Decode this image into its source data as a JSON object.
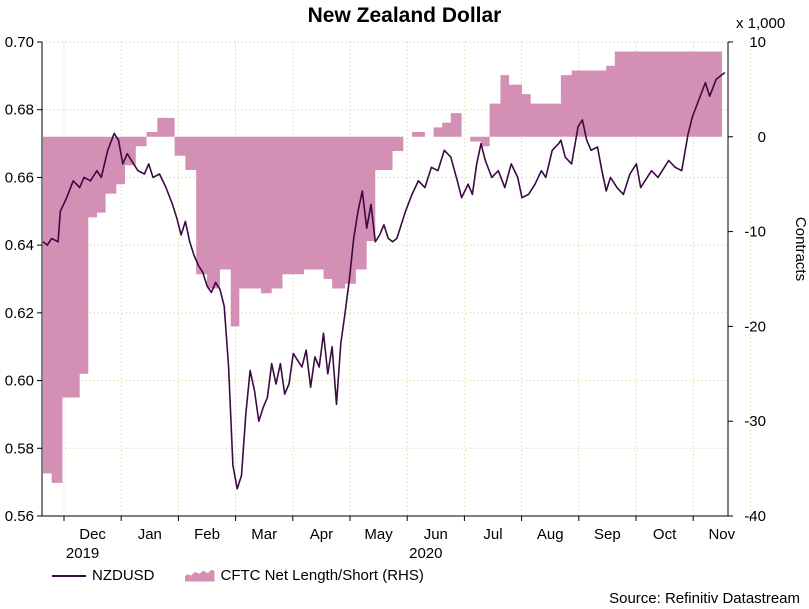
{
  "title": "New Zealand Dollar",
  "source": "Source: Refinitiv Datastream",
  "colors": {
    "line": "#3b0a45",
    "area": "#d48fb4",
    "grid": "#c8c8a0"
  },
  "chart_data": {
    "type": "line",
    "title": "New Zealand Dollar",
    "left_axis": {
      "ticks": [
        "0.56",
        "0.58",
        "0.60",
        "0.62",
        "0.64",
        "0.66",
        "0.68",
        "0.70"
      ],
      "range": [
        0.56,
        0.7
      ]
    },
    "right_axis": {
      "label": "Contracts",
      "multiplier": "x 1,000",
      "ticks": [
        "-40",
        "-30",
        "-20",
        "-10",
        "0",
        "10"
      ],
      "range": [
        -40,
        10
      ]
    },
    "x_axis": {
      "months": [
        "Dec",
        "Jan",
        "Feb",
        "Mar",
        "Apr",
        "May",
        "Jun",
        "Jul",
        "Aug",
        "Sep",
        "Oct",
        "Nov"
      ],
      "years": [
        {
          "label": "2019",
          "under": "Dec"
        },
        {
          "label": "2020",
          "under": "Jun"
        }
      ],
      "range_index": [
        0,
        12
      ]
    },
    "grid": true,
    "legend_placement": "bottom-left",
    "series": [
      {
        "name": "NZDUSD",
        "axis": "left",
        "kind": "line",
        "points": [
          [
            0.0,
            0.641
          ],
          [
            0.1,
            0.64
          ],
          [
            0.2,
            0.642
          ],
          [
            0.35,
            0.641
          ],
          [
            0.4,
            0.65
          ],
          [
            0.55,
            0.654
          ],
          [
            0.7,
            0.659
          ],
          [
            0.85,
            0.657
          ],
          [
            0.95,
            0.66
          ],
          [
            1.1,
            0.659
          ],
          [
            1.25,
            0.662
          ],
          [
            1.35,
            0.66
          ],
          [
            1.5,
            0.668
          ],
          [
            1.65,
            0.673
          ],
          [
            1.75,
            0.671
          ],
          [
            1.85,
            0.664
          ],
          [
            1.95,
            0.667
          ],
          [
            2.05,
            0.665
          ],
          [
            2.2,
            0.662
          ],
          [
            2.35,
            0.661
          ],
          [
            2.45,
            0.664
          ],
          [
            2.55,
            0.66
          ],
          [
            2.7,
            0.661
          ],
          [
            2.85,
            0.657
          ],
          [
            3.0,
            0.652
          ],
          [
            3.1,
            0.648
          ],
          [
            3.2,
            0.643
          ],
          [
            3.3,
            0.647
          ],
          [
            3.4,
            0.641
          ],
          [
            3.5,
            0.637
          ],
          [
            3.6,
            0.634
          ],
          [
            3.7,
            0.632
          ],
          [
            3.8,
            0.628
          ],
          [
            3.9,
            0.626
          ],
          [
            4.0,
            0.629
          ],
          [
            4.1,
            0.627
          ],
          [
            4.2,
            0.622
          ],
          [
            4.3,
            0.604
          ],
          [
            4.4,
            0.575
          ],
          [
            4.5,
            0.568
          ],
          [
            4.6,
            0.572
          ],
          [
            4.7,
            0.59
          ],
          [
            4.8,
            0.603
          ],
          [
            4.9,
            0.597
          ],
          [
            5.0,
            0.588
          ],
          [
            5.1,
            0.592
          ],
          [
            5.2,
            0.595
          ],
          [
            5.3,
            0.605
          ],
          [
            5.4,
            0.599
          ],
          [
            5.5,
            0.605
          ],
          [
            5.6,
            0.596
          ],
          [
            5.7,
            0.599
          ],
          [
            5.8,
            0.608
          ],
          [
            5.9,
            0.606
          ],
          [
            6.0,
            0.604
          ],
          [
            6.1,
            0.609
          ],
          [
            6.2,
            0.598
          ],
          [
            6.3,
            0.607
          ],
          [
            6.4,
            0.604
          ],
          [
            6.5,
            0.614
          ],
          [
            6.6,
            0.602
          ],
          [
            6.7,
            0.61
          ],
          [
            6.8,
            0.593
          ],
          [
            6.9,
            0.611
          ],
          [
            7.0,
            0.62
          ],
          [
            7.1,
            0.63
          ],
          [
            7.2,
            0.642
          ],
          [
            7.3,
            0.65
          ],
          [
            7.4,
            0.656
          ],
          [
            7.5,
            0.645
          ],
          [
            7.6,
            0.652
          ],
          [
            7.7,
            0.641
          ],
          [
            7.8,
            0.643
          ],
          [
            7.9,
            0.646
          ],
          [
            8.0,
            0.642
          ],
          [
            8.1,
            0.641
          ],
          [
            8.2,
            0.642
          ],
          [
            8.4,
            0.65
          ],
          [
            8.55,
            0.655
          ],
          [
            8.7,
            0.659
          ],
          [
            8.85,
            0.657
          ],
          [
            9.0,
            0.663
          ],
          [
            9.15,
            0.662
          ],
          [
            9.3,
            0.668
          ],
          [
            9.45,
            0.666
          ],
          [
            9.6,
            0.659
          ],
          [
            9.7,
            0.654
          ],
          [
            9.85,
            0.658
          ],
          [
            9.95,
            0.655
          ],
          [
            10.05,
            0.664
          ],
          [
            10.15,
            0.67
          ],
          [
            10.25,
            0.665
          ],
          [
            10.4,
            0.66
          ],
          [
            10.55,
            0.662
          ],
          [
            10.7,
            0.657
          ],
          [
            10.85,
            0.664
          ],
          [
            11.0,
            0.66
          ],
          [
            11.1,
            0.654
          ],
          [
            11.25,
            0.655
          ],
          [
            11.4,
            0.658
          ],
          [
            11.55,
            0.662
          ],
          [
            11.65,
            0.66
          ],
          [
            11.8,
            0.668
          ],
          [
            11.95,
            0.67
          ],
          [
            12.0,
            0.671
          ],
          [
            12.1,
            0.666
          ],
          [
            12.25,
            0.664
          ],
          [
            12.4,
            0.675
          ],
          [
            12.5,
            0.677
          ],
          [
            12.6,
            0.671
          ],
          [
            12.7,
            0.668
          ],
          [
            12.85,
            0.669
          ],
          [
            12.95,
            0.662
          ],
          [
            13.05,
            0.656
          ],
          [
            13.15,
            0.66
          ],
          [
            13.3,
            0.657
          ],
          [
            13.45,
            0.655
          ],
          [
            13.6,
            0.661
          ],
          [
            13.75,
            0.664
          ],
          [
            13.85,
            0.657
          ],
          [
            14.0,
            0.66
          ],
          [
            14.1,
            0.662
          ],
          [
            14.25,
            0.66
          ],
          [
            14.4,
            0.663
          ],
          [
            14.5,
            0.665
          ],
          [
            14.65,
            0.663
          ],
          [
            14.8,
            0.662
          ],
          [
            14.95,
            0.673
          ],
          [
            15.05,
            0.678
          ],
          [
            15.2,
            0.683
          ],
          [
            15.35,
            0.688
          ],
          [
            15.45,
            0.684
          ],
          [
            15.6,
            0.689
          ],
          [
            15.7,
            0.69
          ],
          [
            15.8,
            0.691
          ]
        ]
      },
      {
        "name": "CFTC Net Length/Short (RHS)",
        "axis": "right",
        "kind": "area",
        "steps": [
          [
            0.0,
            -35.5
          ],
          [
            0.2,
            -36.5
          ],
          [
            0.45,
            -27.5
          ],
          [
            0.85,
            -25.0
          ],
          [
            1.05,
            -8.5
          ],
          [
            1.25,
            -8.0
          ],
          [
            1.45,
            -6.0
          ],
          [
            1.7,
            -5.0
          ],
          [
            1.9,
            -3.0
          ],
          [
            2.15,
            -1.0
          ],
          [
            2.4,
            0.5
          ],
          [
            2.65,
            2.0
          ],
          [
            2.95,
            2.0
          ],
          [
            3.05,
            -2.0
          ],
          [
            3.3,
            -3.5
          ],
          [
            3.55,
            -14.5
          ],
          [
            3.8,
            -16.0
          ],
          [
            4.1,
            -14.0
          ],
          [
            4.35,
            -20.0
          ],
          [
            4.55,
            -16.0
          ],
          [
            4.8,
            -16.0
          ],
          [
            5.05,
            -16.5
          ],
          [
            5.3,
            -16.0
          ],
          [
            5.55,
            -14.5
          ],
          [
            5.85,
            -14.5
          ],
          [
            6.05,
            -14.0
          ],
          [
            6.25,
            -14.0
          ],
          [
            6.5,
            -15.0
          ],
          [
            6.7,
            -16.0
          ],
          [
            7.0,
            -15.5
          ],
          [
            7.25,
            -14.0
          ],
          [
            7.5,
            -11.0
          ],
          [
            7.7,
            -3.5
          ],
          [
            8.1,
            -1.5
          ],
          [
            8.35,
            0.0
          ],
          [
            8.55,
            0.5
          ],
          [
            8.85,
            0.0
          ],
          [
            9.05,
            1.0
          ],
          [
            9.25,
            1.5
          ],
          [
            9.45,
            2.5
          ],
          [
            9.7,
            0.0
          ],
          [
            9.9,
            -0.5
          ],
          [
            10.15,
            -1.0
          ],
          [
            10.35,
            3.5
          ],
          [
            10.6,
            6.5
          ],
          [
            10.8,
            5.5
          ],
          [
            11.1,
            4.5
          ],
          [
            11.3,
            3.5
          ],
          [
            11.55,
            3.5
          ],
          [
            11.75,
            3.5
          ],
          [
            12.0,
            6.5
          ],
          [
            12.25,
            7.0
          ],
          [
            12.55,
            7.0
          ],
          [
            12.85,
            7.0
          ],
          [
            13.05,
            7.5
          ],
          [
            13.25,
            9.0
          ],
          [
            13.45,
            9.0
          ]
        ]
      }
    ]
  }
}
